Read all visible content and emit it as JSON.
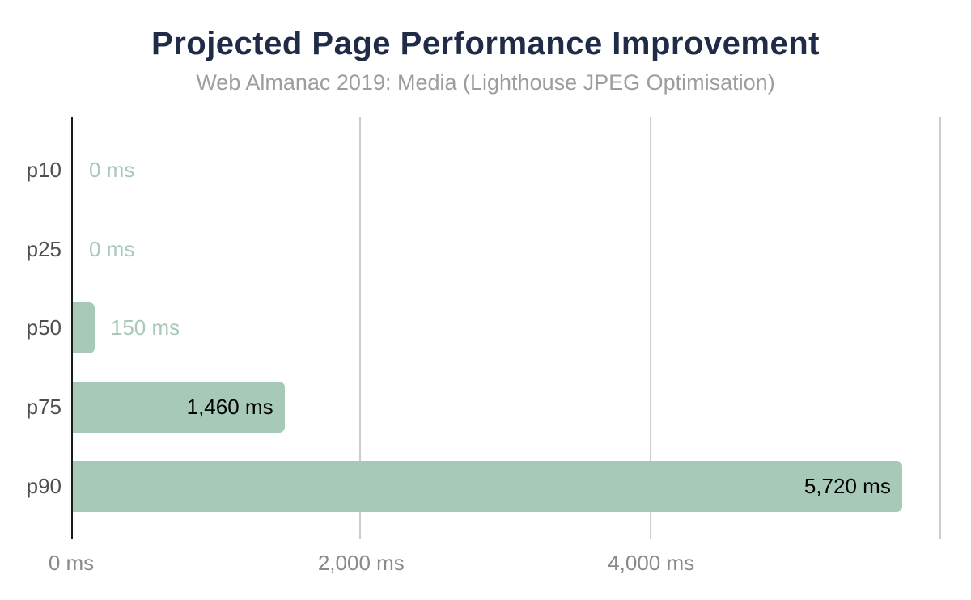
{
  "header": {
    "title": "Projected Page Performance Improvement",
    "subtitle": "Web Almanac 2019: Media (Lighthouse JPEG Optimisation)"
  },
  "chart_data": {
    "type": "bar",
    "orientation": "horizontal",
    "title": "Projected Page Performance Improvement",
    "subtitle": "Web Almanac 2019: Media (Lighthouse JPEG Optimisation)",
    "categories": [
      "p10",
      "p25",
      "p50",
      "p75",
      "p90"
    ],
    "values": [
      0,
      0,
      150,
      1460,
      5720
    ],
    "value_labels": [
      "0 ms",
      "0 ms",
      "150 ms",
      "1,460 ms",
      "5,720 ms"
    ],
    "value_label_placement": [
      "outside",
      "outside",
      "outside",
      "inside",
      "inside"
    ],
    "unit": "ms",
    "xlabel": "",
    "ylabel": "",
    "x_axis": {
      "min": 0,
      "max": 6000,
      "ticks": [
        0,
        2000,
        4000,
        6000
      ],
      "tick_labels": [
        "0 ms",
        "2,000 ms",
        "4,000 ms",
        ""
      ]
    },
    "legend": false,
    "gridlines": "vertical",
    "colors": {
      "bar": "#a6c9b8",
      "title": "#1f2b47",
      "subtitle": "#9d9d9d",
      "category_label": "#4f4f4f",
      "value_label_outside": "#a6c9b8",
      "value_label_inside": "#000000",
      "axis_line": "#1a1a1a",
      "gridline": "#cccccc",
      "tick_label": "#8a8a8a",
      "background": "#ffffff"
    }
  }
}
